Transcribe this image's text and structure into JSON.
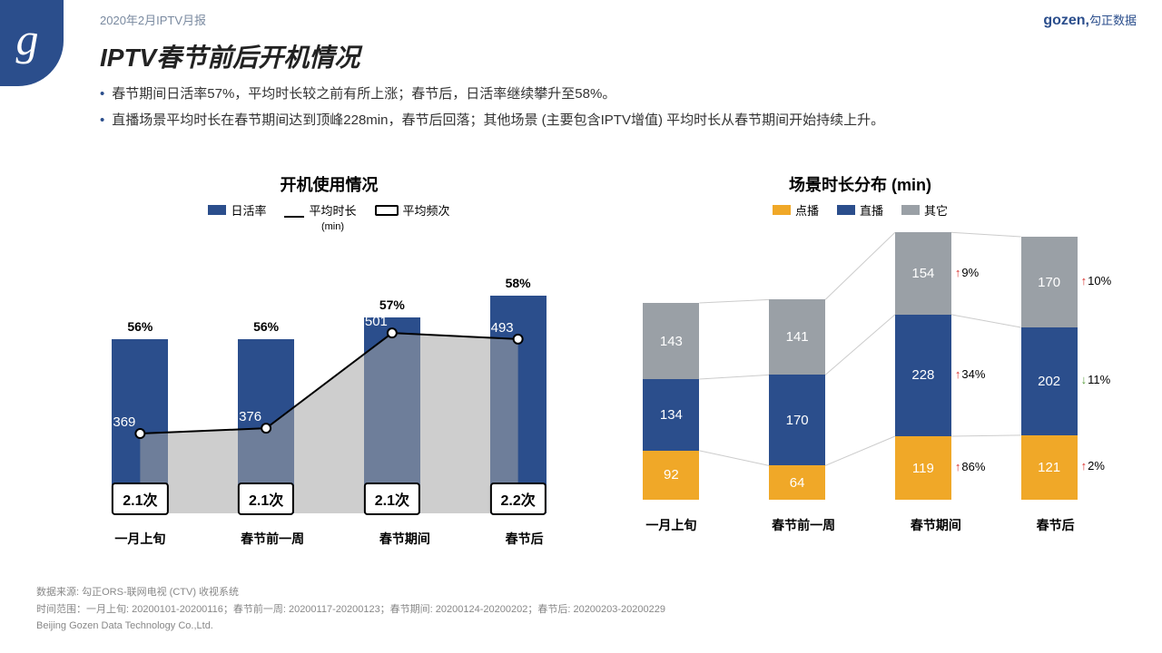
{
  "header": {
    "breadcrumb": "2020年2月IPTV月报",
    "logo_right": "gozen,",
    "logo_right_sub": "勾正数据",
    "logo_left": "g"
  },
  "title": "IPTV春节前后开机情况",
  "bullets": [
    "春节期间日活率57%，平均时长较之前有所上涨；春节后，日活率继续攀升至58%。",
    "直播场景平均时长在春节期间达到顶峰228min，春节后回落；其他场景 (主要包含IPTV增值) 平均时长从春节期间开始持续上升。"
  ],
  "chart_left": {
    "title": "开机使用情况",
    "type": "bar+line",
    "legend": [
      {
        "label": "日活率",
        "kind": "bar",
        "color": "#2b4e8c"
      },
      {
        "label": "平均时长",
        "sub": "(min)",
        "kind": "line",
        "color": "#000000"
      },
      {
        "label": "平均频次",
        "kind": "box",
        "color": "#000000"
      }
    ],
    "categories": [
      "一月上旬",
      "春节前一周",
      "春节期间",
      "春节后"
    ],
    "bar_values_pct": [
      56,
      56,
      57,
      58
    ],
    "bar_color": "#2b4e8c",
    "line_values": [
      369,
      376,
      501,
      493
    ],
    "line_color": "#000000",
    "area_color": "#a6a6a6",
    "freq_labels": [
      "2.1次",
      "2.1次",
      "2.1次",
      "2.2次"
    ],
    "ylim_bar": [
      50,
      60
    ],
    "ylim_line": [
      300,
      550
    ]
  },
  "chart_right": {
    "title": "场景时长分布 (min)",
    "type": "stacked-bar",
    "legend": [
      {
        "label": "点播",
        "color": "#f0a828"
      },
      {
        "label": "直播",
        "color": "#2b4e8c"
      },
      {
        "label": "其它",
        "color": "#9aa0a6"
      }
    ],
    "categories": [
      "一月上旬",
      "春节前一周",
      "春节期间",
      "春节后"
    ],
    "stacks": [
      {
        "vod": 92,
        "live": 134,
        "other": 143
      },
      {
        "vod": 64,
        "live": 170,
        "other": 141
      },
      {
        "vod": 119,
        "live": 228,
        "other": 154
      },
      {
        "vod": 121,
        "live": 202,
        "other": 170
      }
    ],
    "annotations": [
      {
        "col": 2,
        "seg": "other",
        "text": "9%",
        "dir": "up"
      },
      {
        "col": 2,
        "seg": "live",
        "text": "34%",
        "dir": "up"
      },
      {
        "col": 2,
        "seg": "vod",
        "text": "86%",
        "dir": "up"
      },
      {
        "col": 3,
        "seg": "other",
        "text": "10%",
        "dir": "up"
      },
      {
        "col": 3,
        "seg": "live",
        "text": "11%",
        "dir": "down"
      },
      {
        "col": 3,
        "seg": "vod",
        "text": "2%",
        "dir": "up"
      }
    ],
    "max_total": 510,
    "connector_color": "#cccccc"
  },
  "footer": {
    "l1": "数据来源: 勾正ORS-联网电视 (CTV) 收视系统",
    "l2": "时间范围：一月上旬: 20200101-20200116；春节前一周: 20200117-20200123；春节期间: 20200124-20200202；春节后: 20200203-20200229",
    "l3": "Beijing Gozen Data Technology Co.,Ltd."
  }
}
